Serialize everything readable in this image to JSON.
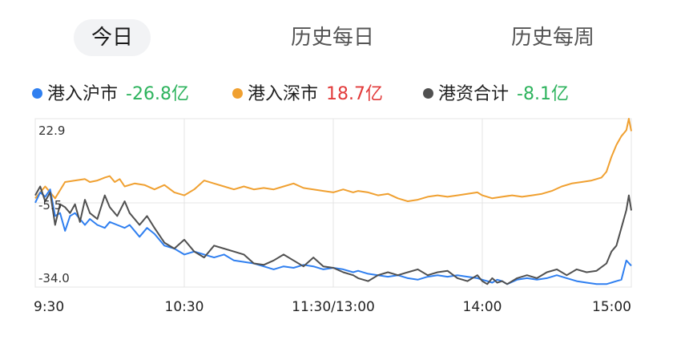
{
  "tabs": [
    {
      "label": "今日",
      "active": true
    },
    {
      "label": "历史每日",
      "active": false
    },
    {
      "label": "历史每周",
      "active": false
    }
  ],
  "legend": [
    {
      "name": "港入沪市",
      "value": "-26.8亿",
      "color": "#2f7ff0",
      "value_color": "#2db35d"
    },
    {
      "name": "港入深市",
      "value": "18.7亿",
      "color": "#f0a030",
      "value_color": "#e23b3b"
    },
    {
      "name": "港资合计",
      "value": "-8.1亿",
      "color": "#505050",
      "value_color": "#2db35d"
    }
  ],
  "chart_data": {
    "type": "line",
    "ylim": [
      -34.0,
      22.9
    ],
    "yticks": [
      "22.9",
      "-5.5",
      "-34.0"
    ],
    "xticks": [
      "9:30",
      "10:30",
      "11:30/13:00",
      "14:00",
      "15:00"
    ],
    "grid": true,
    "x_note": "240 trading minutes; x = minutes since 9:30 (lunch break removed)",
    "series": [
      {
        "name": "港入沪市",
        "color": "#2f7ff0",
        "x": [
          0,
          2,
          4,
          6,
          8,
          10,
          12,
          14,
          16,
          18,
          20,
          22,
          25,
          28,
          30,
          33,
          36,
          38,
          42,
          45,
          48,
          52,
          56,
          60,
          64,
          68,
          72,
          76,
          80,
          84,
          88,
          92,
          96,
          100,
          104,
          108,
          112,
          116,
          120,
          124,
          128,
          130,
          134,
          138,
          142,
          146,
          150,
          154,
          158,
          162,
          166,
          170,
          174,
          178,
          180,
          182,
          184,
          186,
          188,
          190,
          194,
          198,
          202,
          206,
          210,
          214,
          218,
          222,
          226,
          230,
          234,
          236,
          238,
          240
        ],
        "y": [
          -5.5,
          -2.0,
          -3.5,
          -1.0,
          -10.0,
          -9.0,
          -15.0,
          -10.0,
          -9.0,
          -11.0,
          -13.0,
          -11.0,
          -13.0,
          -14.0,
          -12.0,
          -13.0,
          -14.0,
          -13.0,
          -17.0,
          -14.0,
          -16.0,
          -20.0,
          -21.0,
          -23.0,
          -22.0,
          -23.0,
          -24.0,
          -23.0,
          -25.0,
          -25.5,
          -26.0,
          -27.0,
          -28.0,
          -27.0,
          -27.5,
          -26.5,
          -27.0,
          -28.0,
          -27.5,
          -28.0,
          -29.0,
          -28.5,
          -29.5,
          -30.0,
          -30.5,
          -30.0,
          -31.0,
          -31.5,
          -30.5,
          -30.0,
          -30.5,
          -30.0,
          -30.5,
          -31.0,
          -31.5,
          -32.0,
          -32.5,
          -31.5,
          -32.0,
          -33.0,
          -31.5,
          -31.0,
          -31.5,
          -31.0,
          -30.0,
          -31.0,
          -32.0,
          -32.5,
          -33.0,
          -33.0,
          -32.0,
          -31.5,
          -25.0,
          -26.8
        ]
      },
      {
        "name": "港入深市",
        "color": "#f0a030",
        "x": [
          0,
          4,
          8,
          12,
          16,
          20,
          22,
          25,
          28,
          30,
          32,
          34,
          36,
          40,
          44,
          48,
          52,
          56,
          60,
          64,
          68,
          72,
          76,
          80,
          84,
          88,
          92,
          96,
          100,
          104,
          108,
          112,
          116,
          120,
          124,
          128,
          130,
          134,
          138,
          142,
          146,
          150,
          154,
          158,
          162,
          166,
          170,
          174,
          178,
          180,
          184,
          188,
          192,
          196,
          200,
          204,
          208,
          212,
          216,
          220,
          224,
          228,
          230,
          232,
          234,
          236,
          238,
          239,
          240
        ],
        "y": [
          -4.0,
          0.0,
          -4.0,
          1.5,
          2.0,
          2.5,
          1.5,
          2.0,
          3.0,
          3.5,
          1.5,
          2.5,
          0.0,
          1.0,
          0.5,
          -1.0,
          0.5,
          -2.0,
          -3.0,
          -1.0,
          2.0,
          1.0,
          0.0,
          -1.0,
          0.0,
          -1.0,
          -0.5,
          -1.0,
          0.0,
          1.0,
          -0.5,
          -1.0,
          -1.5,
          -2.0,
          -1.0,
          -2.0,
          -1.5,
          -2.0,
          -3.0,
          -2.5,
          -4.0,
          -5.0,
          -4.5,
          -3.5,
          -3.0,
          -3.5,
          -3.0,
          -2.5,
          -2.0,
          -3.0,
          -4.0,
          -3.5,
          -3.0,
          -3.5,
          -3.0,
          -2.5,
          -1.5,
          0.0,
          1.0,
          1.5,
          2.0,
          3.0,
          5.0,
          10.0,
          14.0,
          17.0,
          19.0,
          22.9,
          18.7
        ]
      },
      {
        "name": "港资合计",
        "color": "#505050",
        "x": [
          0,
          2,
          4,
          6,
          8,
          10,
          12,
          14,
          16,
          18,
          20,
          22,
          25,
          28,
          30,
          33,
          36,
          38,
          42,
          45,
          48,
          52,
          56,
          60,
          64,
          68,
          72,
          76,
          80,
          84,
          88,
          92,
          96,
          100,
          104,
          108,
          112,
          116,
          120,
          124,
          128,
          130,
          134,
          138,
          142,
          146,
          150,
          154,
          158,
          162,
          166,
          170,
          174,
          178,
          180,
          182,
          184,
          186,
          188,
          190,
          194,
          198,
          202,
          206,
          210,
          214,
          218,
          222,
          226,
          230,
          232,
          234,
          236,
          238,
          239,
          240
        ],
        "y": [
          -3.0,
          0.0,
          -5.0,
          -2.0,
          -13.0,
          -6.0,
          -7.0,
          -9.0,
          -6.0,
          -12.0,
          -4.5,
          -9.0,
          -11.0,
          -3.0,
          -7.0,
          -10.0,
          -5.0,
          -9.0,
          -13.0,
          -10.0,
          -14.0,
          -19.0,
          -21.0,
          -18.0,
          -22.0,
          -24.0,
          -20.0,
          -21.0,
          -22.0,
          -23.0,
          -26.0,
          -26.5,
          -25.0,
          -23.0,
          -25.0,
          -27.0,
          -24.0,
          -27.0,
          -27.5,
          -29.0,
          -30.0,
          -31.0,
          -32.0,
          -30.0,
          -29.0,
          -30.0,
          -29.0,
          -28.0,
          -30.0,
          -29.0,
          -28.5,
          -31.0,
          -32.0,
          -30.0,
          -32.0,
          -33.0,
          -31.0,
          -32.5,
          -32.0,
          -33.0,
          -31.0,
          -30.0,
          -31.0,
          -29.0,
          -28.0,
          -30.0,
          -28.0,
          -29.0,
          -28.5,
          -26.0,
          -22.0,
          -20.0,
          -14.0,
          -8.0,
          -3.0,
          -8.1
        ]
      }
    ]
  }
}
